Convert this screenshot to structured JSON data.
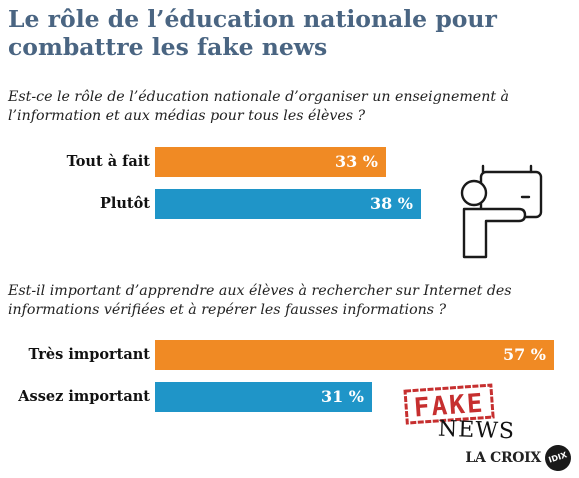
{
  "title": "Le rôle de l’éducation nationale pour combattre les fake news",
  "colors": {
    "orange": "#f08a24",
    "blue": "#1f95c8",
    "title": "#4a6582",
    "stamp": "#c62f2f"
  },
  "chart_data": [
    {
      "type": "bar",
      "orientation": "horizontal",
      "title": "Est-ce le rôle de l’éducation nationale d’organiser un enseignement à l’information et aux médias pour tous les élèves ?",
      "categories": [
        "Tout à fait",
        "Plutôt"
      ],
      "values": [
        33,
        38
      ],
      "value_labels": [
        "33 %",
        "38 %"
      ],
      "bar_colors": [
        "#f08a24",
        "#1f95c8"
      ],
      "unit": "%",
      "xlim": [
        0,
        100
      ]
    },
    {
      "type": "bar",
      "orientation": "horizontal",
      "title": "Est-il important d’apprendre aux élèves à rechercher sur Internet des informations vérifiées et à repérer les fausses informations ?",
      "categories": [
        "Très important",
        "Assez important"
      ],
      "values": [
        57,
        31
      ],
      "value_labels": [
        "57 %",
        "31 %"
      ],
      "bar_colors": [
        "#f08a24",
        "#1f95c8"
      ],
      "unit": "%",
      "xlim": [
        0,
        100
      ]
    }
  ],
  "illustration": {
    "teacher_icon": "teacher-at-board-icon",
    "stamp_text": "FAKE",
    "stamp_caption": "NEWS"
  },
  "logo": {
    "text": "LA CROIX",
    "badge": "IDIX"
  }
}
